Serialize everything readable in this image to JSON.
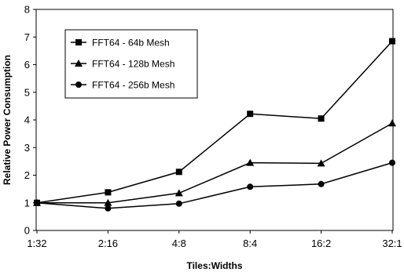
{
  "chart_data": {
    "type": "line",
    "categories": [
      "1:32",
      "2:16",
      "4:8",
      "8:4",
      "16:2",
      "32:1"
    ],
    "series": [
      {
        "name": "FFT64 - 64b Mesh",
        "marker": "square",
        "values": [
          1.0,
          1.38,
          2.12,
          4.22,
          4.05,
          6.85
        ]
      },
      {
        "name": "FFT64 - 128b Mesh",
        "marker": "triangle",
        "values": [
          1.0,
          1.0,
          1.35,
          2.45,
          2.43,
          3.88
        ]
      },
      {
        "name": "FFT64 - 256b Mesh",
        "marker": "circle",
        "values": [
          1.0,
          0.8,
          0.97,
          1.58,
          1.68,
          2.45
        ]
      }
    ],
    "xlabel": "Tiles:Widths",
    "ylabel": "Relative Power Consumption",
    "ylim": [
      0,
      8
    ],
    "yticks": [
      "0",
      "1",
      "2",
      "3",
      "4",
      "5",
      "6",
      "7",
      "8"
    ],
    "grid": false,
    "legend_position": "top-left",
    "color": "#000000"
  }
}
